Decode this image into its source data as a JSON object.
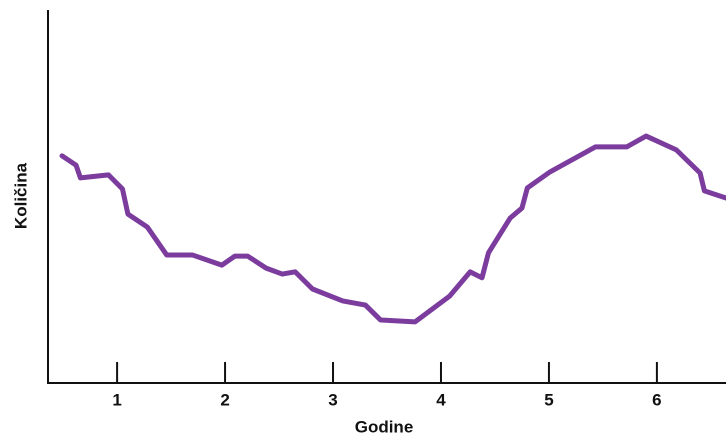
{
  "chart_data": {
    "type": "line",
    "x_label": "Godine",
    "y_label": "Količina",
    "xlim": [
      0.36,
      6.64
    ],
    "xticks": [
      1,
      2,
      3,
      4,
      5,
      6
    ],
    "ylim": [
      0,
      100
    ],
    "series": [
      {
        "color": "#7b3c9e",
        "x": [
          0.49,
          0.62,
          0.66,
          0.92,
          1.05,
          1.1,
          1.28,
          1.46,
          1.7,
          1.97,
          2.09,
          2.21,
          2.38,
          2.53,
          2.65,
          2.81,
          3.09,
          3.3,
          3.44,
          3.76,
          4.08,
          4.27,
          4.38,
          4.44,
          4.64,
          4.75,
          4.8,
          5.01,
          5.43,
          5.72,
          5.9,
          6.18,
          6.4,
          6.44,
          6.64
        ],
        "values": [
          60.9,
          58.4,
          55.0,
          55.8,
          52.0,
          45.3,
          41.8,
          34.3,
          34.3,
          31.6,
          34.0,
          34.0,
          30.8,
          29.2,
          29.8,
          25.2,
          22.0,
          20.9,
          16.9,
          16.4,
          23.3,
          29.8,
          28.2,
          34.9,
          44.2,
          46.9,
          52.3,
          56.6,
          63.3,
          63.3,
          66.2,
          62.5,
          56.3,
          51.5,
          49.6
        ]
      }
    ]
  }
}
